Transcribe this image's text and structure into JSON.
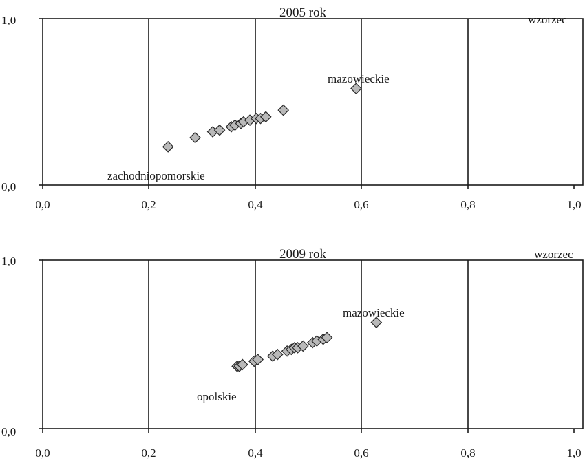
{
  "chart_data": [
    {
      "type": "scatter",
      "title": "2005 rok",
      "corner_label": "wzorzec",
      "xlim": [
        0,
        1
      ],
      "ylim": [
        0,
        1
      ],
      "x_ticks": [
        "0,0",
        "0,2",
        "0,4",
        "0,6",
        "0,8",
        "1,0"
      ],
      "y_ticks": [
        "0,0",
        "1,0"
      ],
      "grid": "vertical",
      "points": [
        {
          "x": 0.236,
          "y": 0.23
        },
        {
          "x": 0.287,
          "y": 0.285
        },
        {
          "x": 0.32,
          "y": 0.32
        },
        {
          "x": 0.333,
          "y": 0.33
        },
        {
          "x": 0.355,
          "y": 0.35
        },
        {
          "x": 0.362,
          "y": 0.36
        },
        {
          "x": 0.373,
          "y": 0.37
        },
        {
          "x": 0.378,
          "y": 0.38
        },
        {
          "x": 0.39,
          "y": 0.39
        },
        {
          "x": 0.402,
          "y": 0.4
        },
        {
          "x": 0.41,
          "y": 0.4
        },
        {
          "x": 0.42,
          "y": 0.41
        },
        {
          "x": 0.453,
          "y": 0.45
        },
        {
          "x": 0.59,
          "y": 0.58
        }
      ],
      "annotations": [
        {
          "text": "mazowieckie",
          "x": 0.59,
          "y": 0.58
        },
        {
          "text": "zachodniopomorskie",
          "x": 0.236,
          "y": 0.23
        }
      ]
    },
    {
      "type": "scatter",
      "title": "2009 rok",
      "corner_label": "wzorzec",
      "xlim": [
        0,
        1
      ],
      "ylim": [
        0,
        1
      ],
      "x_ticks": [
        "0,0",
        "0,2",
        "0,4",
        "0,6",
        "0,8",
        "1,0"
      ],
      "y_ticks": [
        "0,0",
        "1,0"
      ],
      "grid": "vertical",
      "points": [
        {
          "x": 0.366,
          "y": 0.37
        },
        {
          "x": 0.37,
          "y": 0.37
        },
        {
          "x": 0.376,
          "y": 0.38
        },
        {
          "x": 0.398,
          "y": 0.4
        },
        {
          "x": 0.405,
          "y": 0.41
        },
        {
          "x": 0.433,
          "y": 0.43
        },
        {
          "x": 0.442,
          "y": 0.44
        },
        {
          "x": 0.46,
          "y": 0.46
        },
        {
          "x": 0.468,
          "y": 0.47
        },
        {
          "x": 0.474,
          "y": 0.48
        },
        {
          "x": 0.48,
          "y": 0.48
        },
        {
          "x": 0.49,
          "y": 0.49
        },
        {
          "x": 0.508,
          "y": 0.51
        },
        {
          "x": 0.516,
          "y": 0.52
        },
        {
          "x": 0.528,
          "y": 0.53
        },
        {
          "x": 0.535,
          "y": 0.54
        },
        {
          "x": 0.628,
          "y": 0.63
        }
      ],
      "annotations": [
        {
          "text": "mazowieckie",
          "x": 0.628,
          "y": 0.63
        },
        {
          "text": "opolskie",
          "x": 0.366,
          "y": 0.37
        }
      ]
    }
  ]
}
